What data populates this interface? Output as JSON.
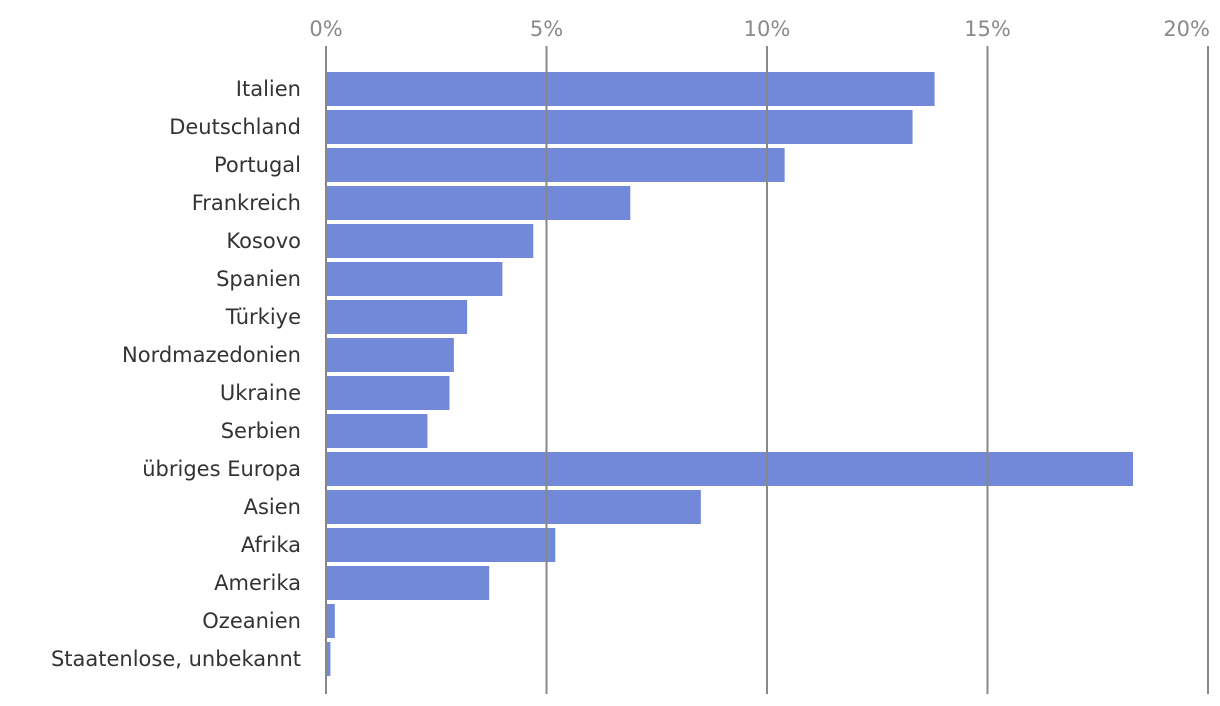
{
  "chart_data": {
    "type": "bar",
    "orientation": "horizontal",
    "title": "",
    "xlabel": "",
    "ylabel": "",
    "xlim": [
      0,
      20
    ],
    "xticks": [
      0,
      5,
      10,
      15,
      20
    ],
    "xtick_labels": [
      "0%",
      "5%",
      "10%",
      "15%",
      "20%"
    ],
    "x_axis_position": "top",
    "grid": true,
    "legend": "none",
    "bar_color": "#7189d8",
    "grid_color": "#888888",
    "categories": [
      "Italien",
      "Deutschland",
      "Portugal",
      "Frankreich",
      "Kosovo",
      "Spanien",
      "Türkiye",
      "Nordmazedonien",
      "Ukraine",
      "Serbien",
      "übriges Europa",
      "Asien",
      "Afrika",
      "Amerika",
      "Ozeanien",
      "Staatenlose, unbekannt"
    ],
    "values": [
      13.8,
      13.3,
      10.4,
      6.9,
      4.7,
      4.0,
      3.2,
      2.9,
      2.8,
      2.3,
      18.3,
      8.5,
      5.2,
      3.7,
      0.2,
      0.1
    ]
  }
}
